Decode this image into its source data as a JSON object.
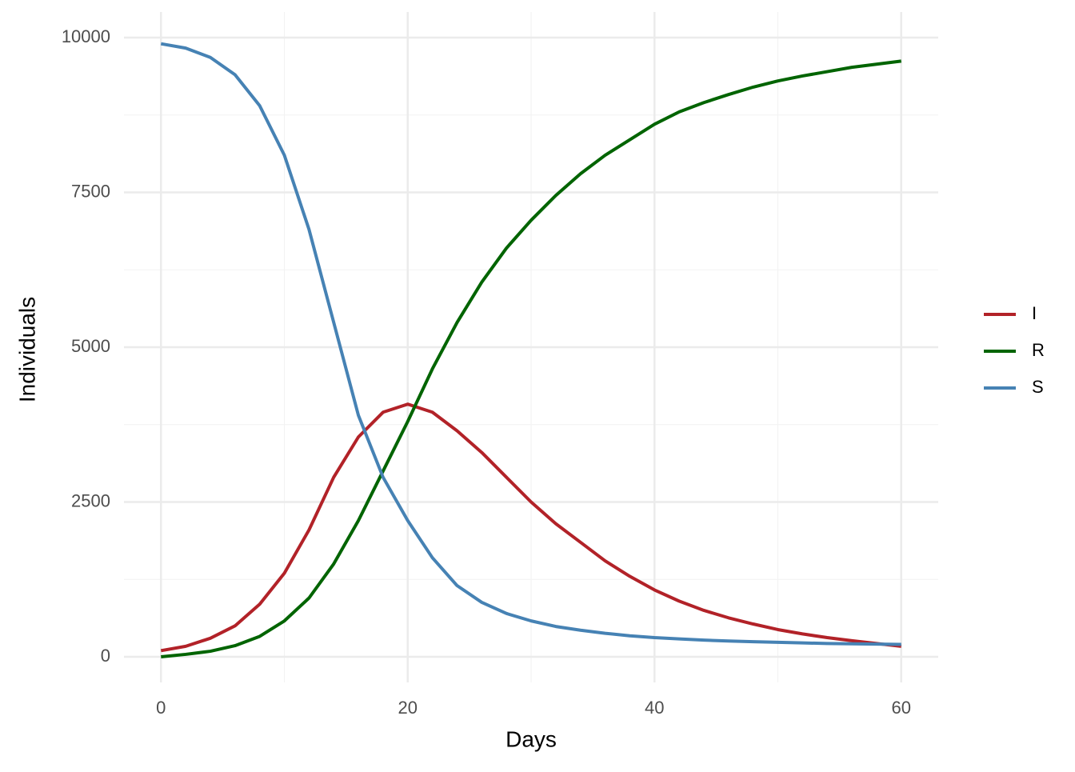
{
  "chart_data": {
    "type": "line",
    "x_label": "Days",
    "y_label": "Individuals",
    "x": [
      0,
      2,
      4,
      6,
      8,
      10,
      12,
      14,
      16,
      18,
      20,
      22,
      24,
      26,
      28,
      30,
      32,
      34,
      36,
      38,
      40,
      42,
      44,
      46,
      48,
      50,
      52,
      54,
      56,
      58,
      60
    ],
    "series": [
      {
        "name": "I",
        "color": "#b22228",
        "values": [
          100,
          170,
          300,
          500,
          850,
          1350,
          2050,
          2900,
          3550,
          3950,
          4080,
          3950,
          3650,
          3300,
          2900,
          2500,
          2150,
          1850,
          1550,
          1300,
          1080,
          900,
          750,
          630,
          530,
          440,
          370,
          310,
          260,
          215,
          170
        ]
      },
      {
        "name": "R",
        "color": "#006400",
        "values": [
          0,
          40,
          90,
          180,
          330,
          580,
          950,
          1500,
          2200,
          3000,
          3800,
          4650,
          5400,
          6050,
          6600,
          7050,
          7450,
          7800,
          8100,
          8350,
          8600,
          8800,
          8950,
          9080,
          9200,
          9300,
          9380,
          9450,
          9520,
          9570,
          9620
        ]
      },
      {
        "name": "S",
        "color": "#4682b4",
        "values": [
          9900,
          9830,
          9680,
          9400,
          8900,
          8100,
          6900,
          5400,
          3900,
          2900,
          2200,
          1600,
          1150,
          880,
          700,
          580,
          490,
          430,
          380,
          340,
          310,
          290,
          270,
          255,
          245,
          235,
          225,
          215,
          210,
          205,
          200
        ]
      }
    ],
    "xlim": [
      -3,
      63
    ],
    "ylim": [
      -413,
      10413
    ],
    "xticks": [
      0,
      20,
      40,
      60
    ],
    "yticks": [
      0,
      2500,
      5000,
      7500,
      10000
    ],
    "x_minor_ticks": [
      10,
      30,
      50
    ],
    "y_minor_ticks": [
      1250,
      3750,
      6250,
      8750
    ],
    "grid": true,
    "legend": "right"
  }
}
